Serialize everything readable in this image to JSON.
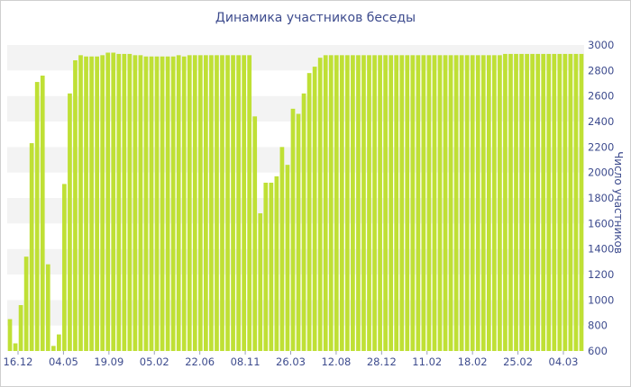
{
  "chart_data": {
    "type": "bar",
    "title": "Динамика участников беседы",
    "xlabel": "",
    "ylabel": "Число участников",
    "ylim": [
      600,
      3000
    ],
    "y_ticks": [
      600,
      800,
      1000,
      1200,
      1400,
      1600,
      1800,
      2000,
      2200,
      2400,
      2600,
      2800,
      3000
    ],
    "y_axis_position": "right",
    "grid": "alternating horizontal bands",
    "bar_color": "#bfe035",
    "x_tick_labels": [
      "16.12",
      "04.05",
      "19.09",
      "05.02",
      "22.06",
      "08.11",
      "26.03",
      "12.08",
      "28.12",
      "11.02",
      "18.02",
      "25.02",
      "04.03"
    ],
    "values": [
      850,
      660,
      960,
      1340,
      2230,
      2710,
      2760,
      1280,
      640,
      730,
      1910,
      2620,
      2880,
      2920,
      2910,
      2910,
      2910,
      2920,
      2940,
      2940,
      2930,
      2930,
      2930,
      2920,
      2920,
      2910,
      2910,
      2910,
      2910,
      2910,
      2910,
      2920,
      2910,
      2920,
      2920,
      2920,
      2920,
      2920,
      2920,
      2920,
      2920,
      2920,
      2920,
      2920,
      2920,
      2440,
      1680,
      1920,
      1920,
      1970,
      2200,
      2060,
      2500,
      2460,
      2620,
      2780,
      2830,
      2900,
      2920,
      2920,
      2920,
      2920,
      2920,
      2920,
      2920,
      2920,
      2920,
      2920,
      2920,
      2920,
      2920,
      2920,
      2920,
      2920,
      2920,
      2920,
      2920,
      2920,
      2920,
      2920,
      2920,
      2920,
      2920,
      2920,
      2920,
      2920,
      2920,
      2920,
      2920,
      2920,
      2920,
      2930,
      2930,
      2930,
      2930,
      2930,
      2930,
      2930,
      2930,
      2930,
      2930,
      2930,
      2930,
      2930,
      2930,
      2930
    ]
  }
}
